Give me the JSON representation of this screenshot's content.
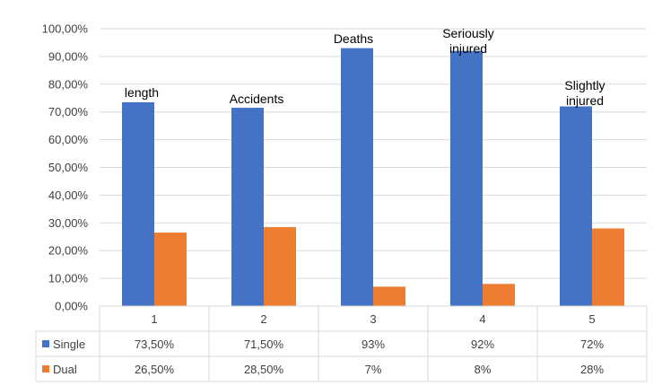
{
  "chart_data": {
    "type": "bar",
    "categories": [
      "1",
      "2",
      "3",
      "4",
      "5"
    ],
    "series": [
      {
        "name": "Single",
        "color": "#4472C4",
        "values": [
          73.5,
          71.5,
          93,
          92,
          72
        ],
        "labels": [
          "73,50%",
          "71,50%",
          "93%",
          "92%",
          "72%"
        ]
      },
      {
        "name": "Dual",
        "color": "#ED7D31",
        "values": [
          26.5,
          28.5,
          7,
          8,
          28
        ],
        "labels": [
          "26,50%",
          "28,50%",
          "7%",
          "8%",
          "28%"
        ]
      }
    ],
    "ylim": [
      0,
      100
    ],
    "yticks": [
      0,
      10,
      20,
      30,
      40,
      50,
      60,
      70,
      80,
      90,
      100
    ],
    "ytick_labels": [
      "0,00%",
      "10,00%",
      "20,00%",
      "30,00%",
      "40,00%",
      "50,00%",
      "60,00%",
      "70,00%",
      "80,00%",
      "90,00%",
      "100,00%"
    ],
    "annotations": [
      {
        "category": "1",
        "lines": [
          "length"
        ]
      },
      {
        "category": "2",
        "lines": [
          "Accidents"
        ]
      },
      {
        "category": "3",
        "lines": [
          "Deaths"
        ]
      },
      {
        "category": "4",
        "lines": [
          "Seriously",
          "injured"
        ]
      },
      {
        "category": "5",
        "lines": [
          "Slightly",
          "injured"
        ]
      }
    ],
    "grid": true,
    "legend": "data-table",
    "gridline_color": "#D9D9D9",
    "border_color": "#D9D9D9"
  }
}
